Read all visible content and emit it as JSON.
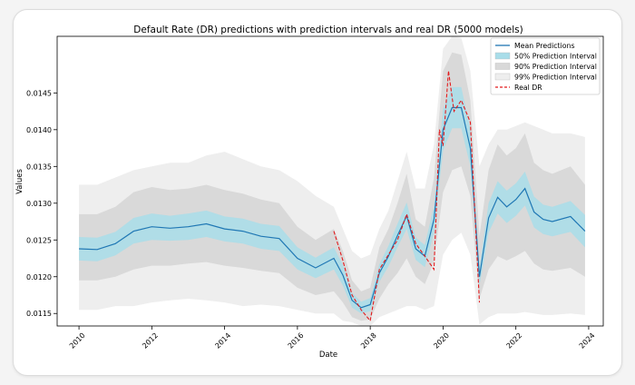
{
  "chart_data": {
    "type": "line",
    "title": "Default Rate (DR) predictions with prediction intervals and real DR (5000 models)",
    "xlabel": "Date",
    "ylabel": "Values",
    "xlim": [
      2009.4,
      2024.4
    ],
    "ylim": [
      0.01133,
      0.01527
    ],
    "x_ticks": [
      "2010",
      "2012",
      "2014",
      "2016",
      "2018",
      "2020",
      "2022",
      "2024"
    ],
    "y_ticks": [
      "0.0115",
      "0.0120",
      "0.0125",
      "0.0130",
      "0.0135",
      "0.0140",
      "0.0145"
    ],
    "legend_position": "top-right",
    "grid": false,
    "legend": [
      {
        "label": "Mean Predictions",
        "kind": "line",
        "color": "#1f77b4"
      },
      {
        "label": "50% Prediction Interval",
        "kind": "patch",
        "color": "#a8dde9"
      },
      {
        "label": "90% Prediction Interval",
        "kind": "patch",
        "color": "#d9d9d9"
      },
      {
        "label": "99% Prediction Interval",
        "kind": "patch",
        "color": "#eeeeee"
      },
      {
        "label": "Real DR",
        "kind": "dashed",
        "color": "#e31a1c"
      }
    ],
    "series": [
      {
        "name": "Mean Predictions",
        "x": [
          2010.0,
          2010.5,
          2011.0,
          2011.5,
          2012.0,
          2012.5,
          2013.0,
          2013.5,
          2014.0,
          2014.5,
          2015.0,
          2015.5,
          2016.0,
          2016.5,
          2017.0,
          2017.25,
          2017.5,
          2017.75,
          2018.0,
          2018.25,
          2018.5,
          2018.75,
          2019.0,
          2019.25,
          2019.5,
          2019.75,
          2020.0,
          2020.25,
          2020.5,
          2020.75,
          2021.0,
          2021.25,
          2021.5,
          2021.75,
          2022.0,
          2022.25,
          2022.5,
          2022.75,
          2023.0,
          2023.5,
          2023.9
        ],
        "values": [
          0.01238,
          0.01237,
          0.01245,
          0.01262,
          0.01268,
          0.01266,
          0.01268,
          0.01272,
          0.01265,
          0.01262,
          0.01255,
          0.01252,
          0.01225,
          0.01212,
          0.01225,
          0.01202,
          0.01168,
          0.01158,
          0.01162,
          0.01205,
          0.01228,
          0.01256,
          0.01283,
          0.01238,
          0.01228,
          0.01278,
          0.014,
          0.0143,
          0.0143,
          0.01375,
          0.012,
          0.0128,
          0.01308,
          0.01295,
          0.01305,
          0.0132,
          0.01288,
          0.01278,
          0.01275,
          0.01282,
          0.01262
        ]
      },
      {
        "name": "Real DR",
        "x": [
          2017.0,
          2017.25,
          2017.5,
          2017.75,
          2018.0,
          2018.25,
          2018.5,
          2018.75,
          2019.0,
          2019.25,
          2019.5,
          2019.75,
          2019.9,
          2020.0,
          2020.15,
          2020.3,
          2020.5,
          2020.75,
          2021.0
        ],
        "values": [
          0.01262,
          0.01222,
          0.01175,
          0.01155,
          0.0114,
          0.0121,
          0.0123,
          0.0125,
          0.01285,
          0.01245,
          0.01228,
          0.0121,
          0.014,
          0.01378,
          0.0148,
          0.01425,
          0.0144,
          0.0141,
          0.01165
        ]
      }
    ],
    "bands": [
      {
        "name": "99% Prediction Interval",
        "lower": [
          0.01155,
          0.01155,
          0.0116,
          0.0116,
          0.01165,
          0.01168,
          0.0117,
          0.01168,
          0.01165,
          0.0116,
          0.01162,
          0.0116,
          0.01155,
          0.0115,
          0.0115,
          0.0114,
          0.01138,
          0.01133,
          0.01133,
          0.01145,
          0.0115,
          0.01155,
          0.0116,
          0.0116,
          0.01155,
          0.0116,
          0.0123,
          0.0125,
          0.0126,
          0.0123,
          0.01135,
          0.01145,
          0.0115,
          0.0115,
          0.0115,
          0.01152,
          0.0115,
          0.01148,
          0.01148,
          0.0115,
          0.01148
        ],
        "upper": [
          0.01325,
          0.01325,
          0.01335,
          0.01345,
          0.0135,
          0.01355,
          0.01355,
          0.01365,
          0.0137,
          0.0136,
          0.0135,
          0.01345,
          0.0133,
          0.0131,
          0.01295,
          0.01265,
          0.01235,
          0.01225,
          0.0123,
          0.01265,
          0.0129,
          0.0133,
          0.0137,
          0.0132,
          0.0132,
          0.0138,
          0.0151,
          0.01527,
          0.01525,
          0.0148,
          0.0135,
          0.0138,
          0.014,
          0.014,
          0.01405,
          0.0141,
          0.01405,
          0.014,
          0.01395,
          0.01395,
          0.0139
        ]
      },
      {
        "name": "90% Prediction Interval",
        "lower": [
          0.01195,
          0.01195,
          0.012,
          0.0121,
          0.01215,
          0.01215,
          0.01218,
          0.0122,
          0.01215,
          0.01212,
          0.01208,
          0.01205,
          0.01185,
          0.01175,
          0.0118,
          0.01165,
          0.01145,
          0.0114,
          0.01142,
          0.0117,
          0.0119,
          0.01205,
          0.01225,
          0.012,
          0.0119,
          0.0122,
          0.01315,
          0.01345,
          0.0135,
          0.0131,
          0.0117,
          0.0121,
          0.01228,
          0.01222,
          0.01228,
          0.01235,
          0.01218,
          0.0121,
          0.01208,
          0.01212,
          0.012
        ],
        "upper": [
          0.01285,
          0.01285,
          0.01295,
          0.01315,
          0.01322,
          0.01318,
          0.0132,
          0.01325,
          0.01318,
          0.01313,
          0.01305,
          0.013,
          0.01268,
          0.0125,
          0.01265,
          0.01235,
          0.01195,
          0.0118,
          0.01185,
          0.0124,
          0.01265,
          0.013,
          0.0134,
          0.01278,
          0.01268,
          0.01335,
          0.0148,
          0.01505,
          0.01502,
          0.0144,
          0.01255,
          0.01345,
          0.0138,
          0.01365,
          0.01375,
          0.01395,
          0.01355,
          0.01345,
          0.0134,
          0.0135,
          0.01325
        ]
      },
      {
        "name": "50% Prediction Interval",
        "lower": [
          0.01222,
          0.01221,
          0.01229,
          0.01245,
          0.0125,
          0.01249,
          0.0125,
          0.01254,
          0.01248,
          0.01245,
          0.01238,
          0.01235,
          0.0121,
          0.01198,
          0.0121,
          0.01188,
          0.01158,
          0.0115,
          0.01153,
          0.01193,
          0.01214,
          0.0124,
          0.01265,
          0.01223,
          0.01213,
          0.0126,
          0.01372,
          0.01402,
          0.01402,
          0.0135,
          0.01188,
          0.0126,
          0.01286,
          0.01273,
          0.01283,
          0.01297,
          0.01267,
          0.01258,
          0.01255,
          0.01261,
          0.0124
        ],
        "upper": [
          0.01254,
          0.01253,
          0.01261,
          0.0128,
          0.01286,
          0.01283,
          0.01286,
          0.0129,
          0.01282,
          0.01279,
          0.01272,
          0.01269,
          0.0124,
          0.01226,
          0.0124,
          0.01216,
          0.01178,
          0.01166,
          0.01171,
          0.01217,
          0.01242,
          0.01272,
          0.01301,
          0.01253,
          0.01243,
          0.01296,
          0.01428,
          0.01458,
          0.01458,
          0.014,
          0.01212,
          0.013,
          0.0133,
          0.01317,
          0.01327,
          0.01343,
          0.01309,
          0.01298,
          0.01295,
          0.01303,
          0.01284
        ]
      }
    ]
  }
}
